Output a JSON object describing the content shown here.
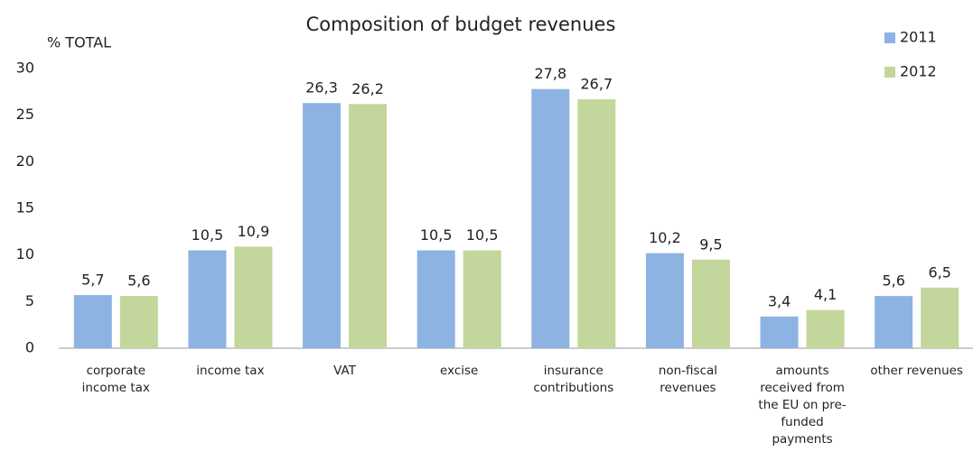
{
  "chart_data": {
    "type": "bar",
    "title": "Composition of budget revenues",
    "y_label": "% TOTAL",
    "categories": [
      "corporate income tax",
      "income tax",
      "VAT",
      "excise",
      "insurance contributions",
      "non-fiscal revenues",
      "amounts received from the EU on pre-funded payments",
      "other revenues"
    ],
    "series": [
      {
        "name": "2011",
        "color": "#8db3e2",
        "values": [
          5.7,
          10.5,
          26.3,
          10.5,
          27.8,
          10.2,
          3.4,
          5.6
        ],
        "value_labels": [
          "5,7",
          "10,5",
          "26,3",
          "10,5",
          "27,8",
          "10,2",
          "3,4",
          "5,6"
        ]
      },
      {
        "name": "2012",
        "color": "#c3d69b",
        "values": [
          5.6,
          10.9,
          26.2,
          10.5,
          26.7,
          9.5,
          4.1,
          6.5
        ],
        "value_labels": [
          "5,6",
          "10,9",
          "26,2",
          "10,5",
          "26,7",
          "9,5",
          "4,1",
          "6,5"
        ]
      }
    ],
    "ylim": [
      0,
      30
    ],
    "yticks": [
      0,
      5,
      10,
      15,
      20,
      25,
      30
    ],
    "legend": "top-right"
  }
}
